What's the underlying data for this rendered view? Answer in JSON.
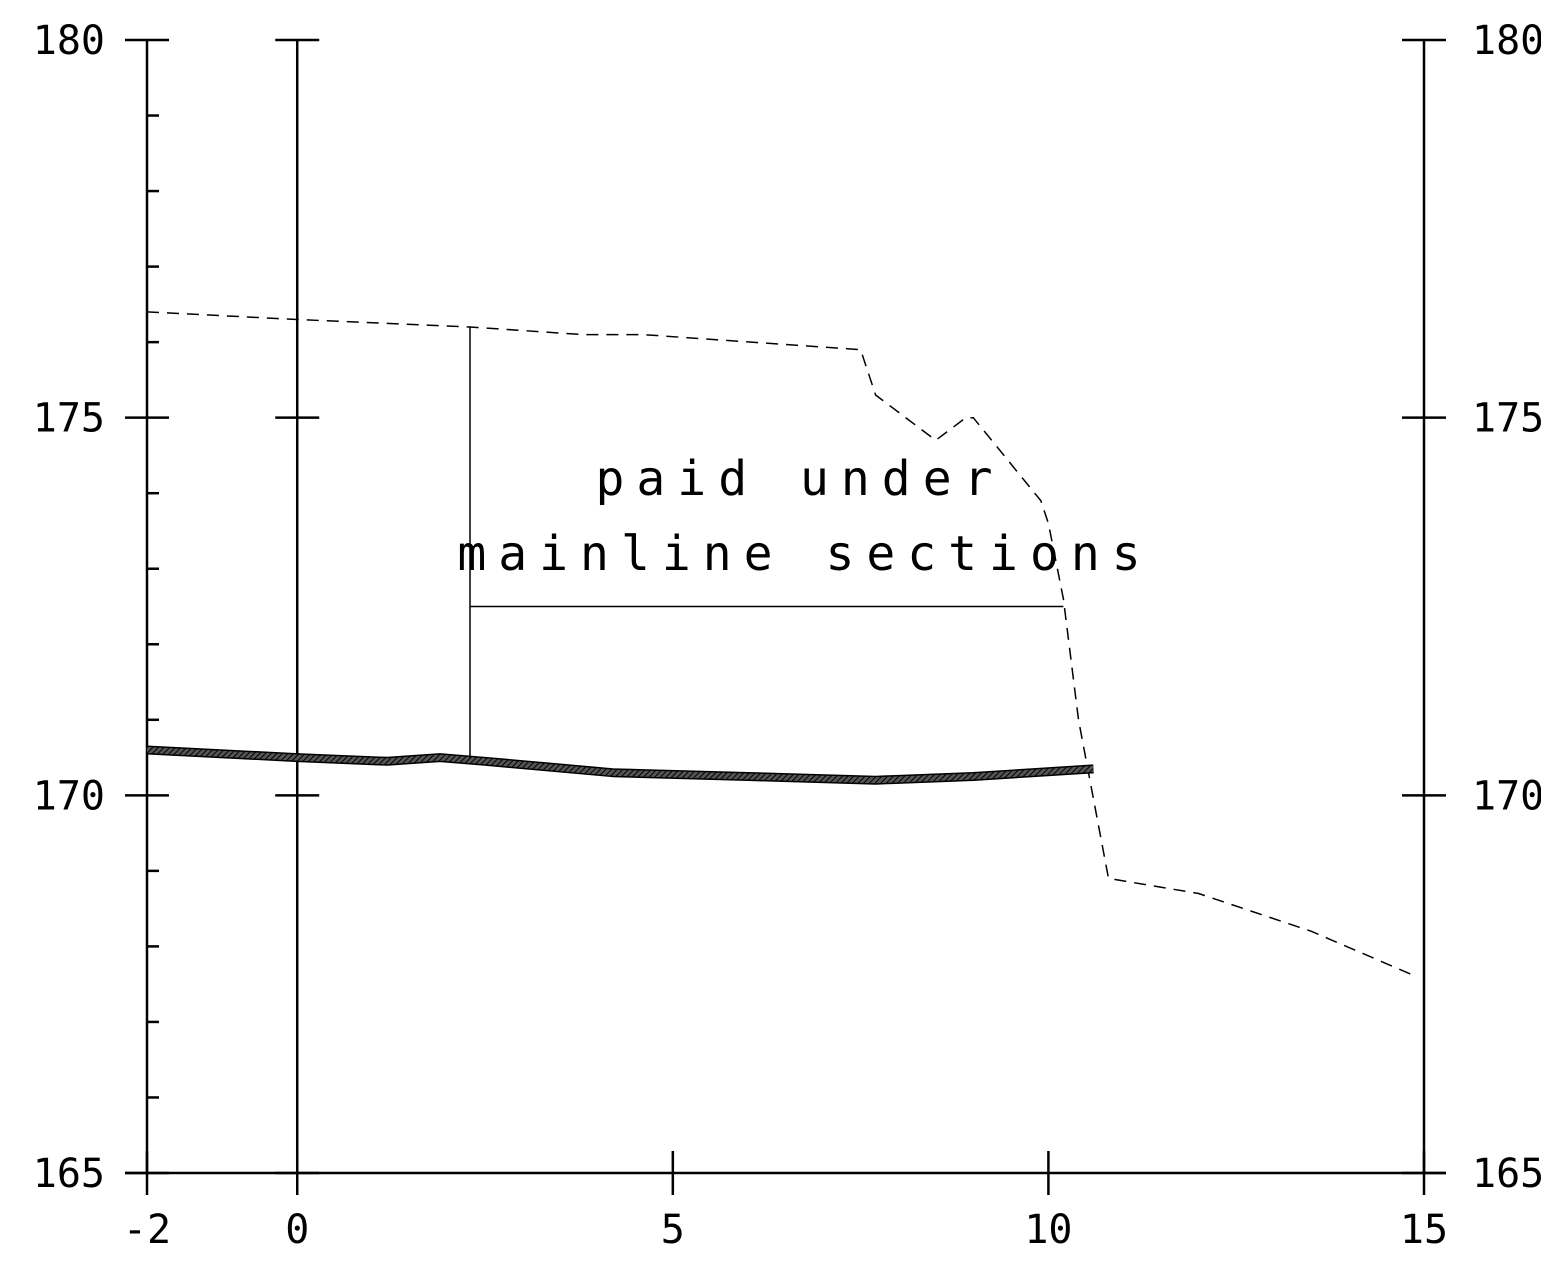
{
  "chart_data": {
    "type": "line",
    "title": "",
    "xlabel": "",
    "ylabel": "",
    "xlim": [
      -2,
      15
    ],
    "ylim": [
      165,
      180
    ],
    "grid": false,
    "x_ticks": [
      -2,
      0,
      5,
      10,
      15
    ],
    "x_tick_labels": [
      "-2",
      "0",
      "5",
      "10",
      "15"
    ],
    "y_ticks": [
      165,
      170,
      175,
      180
    ],
    "y_tick_labels": [
      "165",
      "170",
      "175",
      "180"
    ],
    "y_minor_step": 1,
    "vertical_lines": [
      0
    ],
    "series": [
      {
        "style": "dashed",
        "color": "#000000",
        "x": [
          -2,
          0,
          2.3,
          3.8,
          4.6,
          7.5,
          7.6,
          7.7,
          8.5,
          8.9,
          9.0,
          9.9,
          10.0,
          10.2,
          10.4,
          10.8,
          12.0,
          13.5,
          14.9
        ],
        "y": [
          176.4,
          176.3,
          176.2,
          176.1,
          176.1,
          175.9,
          175.6,
          175.3,
          174.7,
          175.0,
          175.0,
          173.9,
          173.6,
          172.6,
          171.0,
          168.9,
          168.7,
          168.2,
          167.6
        ]
      },
      {
        "style": "thick-hatched",
        "color": "#000000",
        "x": [
          -2,
          0,
          1.2,
          1.9,
          2.5,
          4.2,
          6.0,
          7.7,
          9.0,
          10.6
        ],
        "y": [
          170.6,
          170.5,
          170.45,
          170.5,
          170.45,
          170.3,
          170.25,
          170.2,
          170.25,
          170.35
        ]
      }
    ],
    "annotation": {
      "lines": [
        "paid under",
        "mainline sections"
      ],
      "bracket": {
        "x_left": 2.3,
        "x_right": 10.2,
        "y_top": 176.2,
        "y_bottom": 170.5,
        "y_bar": 172.5
      }
    }
  }
}
